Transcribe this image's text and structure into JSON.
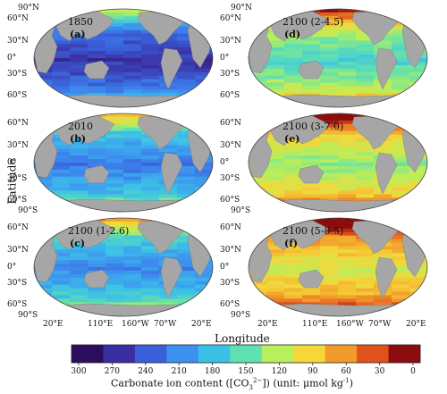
{
  "figure": {
    "ylabel": "Latitude",
    "xlabel": "Longitude",
    "colorbar_label": "Carbonate ion content ([CO3 2-]) (unit: μmol kg-1)",
    "colorbar_label_parts": {
      "pre": "Carbonate ion content ([CO",
      "sub": "3",
      "sup": "2−",
      "post": "]) (unit: μmol kg",
      "unit_sup": "-1",
      "end": ")"
    },
    "colorbar_ticks": [
      "300",
      "270",
      "240",
      "210",
      "180",
      "150",
      "120",
      "90",
      "60",
      "30",
      "0"
    ],
    "colorbar_colors": [
      "#2b0f5c",
      "#3b2ea0",
      "#3a5fd9",
      "#3d8ff0",
      "#3bc0e8",
      "#5fe0b0",
      "#b8ef5a",
      "#f5d73a",
      "#f29a2a",
      "#e0521c",
      "#8c0d0d"
    ],
    "lat_ticks": [
      "90°N",
      "60°N",
      "30°N",
      "0°",
      "30°S",
      "60°S",
      "90°S"
    ],
    "lon_ticks": [
      "20°E",
      "110°E",
      "160°W",
      "70°W",
      "20°E"
    ],
    "panels": [
      {
        "letter": "(a)",
        "year": "1850",
        "col": 0,
        "row": 0,
        "mean": 255
      },
      {
        "letter": "(b)",
        "year": "2010",
        "col": 0,
        "row": 1,
        "mean": 210
      },
      {
        "letter": "(c)",
        "year": "2100 (1-2.6)",
        "col": 0,
        "row": 2,
        "mean": 200
      },
      {
        "letter": "(d)",
        "year": "2100 (2-4.5)",
        "col": 1,
        "row": 0,
        "mean": 150
      },
      {
        "letter": "(e)",
        "year": "2100 (3-7.0)",
        "col": 1,
        "row": 1,
        "mean": 120
      },
      {
        "letter": "(f)",
        "year": "2100 (5-8.5)",
        "col": 1,
        "row": 2,
        "mean": 95
      }
    ]
  }
}
